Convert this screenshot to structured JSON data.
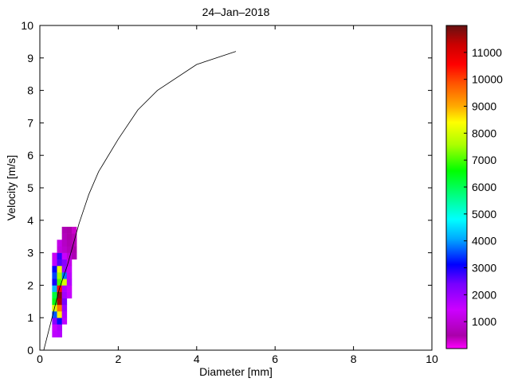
{
  "chart_data": {
    "type": "heatmap",
    "title": "24–Jan–2018",
    "xlabel": "Diameter [mm]",
    "ylabel": "Velocity [m/s]",
    "xlim": [
      0,
      10
    ],
    "ylim": [
      0,
      10
    ],
    "x_ticks": [
      "0",
      "2",
      "4",
      "6",
      "8",
      "10"
    ],
    "y_ticks": [
      "0",
      "1",
      "2",
      "3",
      "4",
      "5",
      "6",
      "7",
      "8",
      "9",
      "10"
    ],
    "grid": false,
    "colorbar": {
      "range": [
        0,
        12000
      ],
      "ticks": [
        "1000",
        "2000",
        "3000",
        "4000",
        "5000",
        "6000",
        "7000",
        "8000",
        "9000",
        "10000",
        "11000"
      ]
    },
    "cell_size": [
      0.125,
      0.2
    ],
    "cells": [
      {
        "d": 0.375,
        "v": 0.5,
        "count": 1600
      },
      {
        "d": 0.5,
        "v": 0.5,
        "count": 1700
      },
      {
        "d": 0.375,
        "v": 0.7,
        "count": 1500
      },
      {
        "d": 0.5,
        "v": 0.7,
        "count": 1800
      },
      {
        "d": 0.375,
        "v": 0.9,
        "count": 2200
      },
      {
        "d": 0.5,
        "v": 0.9,
        "count": 3200
      },
      {
        "d": 0.625,
        "v": 0.9,
        "count": 1600
      },
      {
        "d": 0.375,
        "v": 1.1,
        "count": 3600
      },
      {
        "d": 0.5,
        "v": 1.1,
        "count": 8500
      },
      {
        "d": 0.625,
        "v": 1.1,
        "count": 1800
      },
      {
        "d": 0.375,
        "v": 1.3,
        "count": 8000
      },
      {
        "d": 0.5,
        "v": 1.3,
        "count": 9500
      },
      {
        "d": 0.625,
        "v": 1.3,
        "count": 2000
      },
      {
        "d": 0.375,
        "v": 1.5,
        "count": 6500
      },
      {
        "d": 0.5,
        "v": 1.5,
        "count": 11500
      },
      {
        "d": 0.625,
        "v": 1.5,
        "count": 2400
      },
      {
        "d": 0.375,
        "v": 1.7,
        "count": 6200
      },
      {
        "d": 0.5,
        "v": 1.7,
        "count": 11800
      },
      {
        "d": 0.625,
        "v": 1.7,
        "count": 1900
      },
      {
        "d": 0.75,
        "v": 1.7,
        "count": 1500
      },
      {
        "d": 0.375,
        "v": 1.9,
        "count": 4200
      },
      {
        "d": 0.5,
        "v": 1.9,
        "count": 10500
      },
      {
        "d": 0.625,
        "v": 1.9,
        "count": 1800
      },
      {
        "d": 0.75,
        "v": 1.9,
        "count": 1400
      },
      {
        "d": 0.375,
        "v": 2.1,
        "count": 3000
      },
      {
        "d": 0.5,
        "v": 2.1,
        "count": 7000
      },
      {
        "d": 0.625,
        "v": 2.1,
        "count": 8000
      },
      {
        "d": 0.75,
        "v": 2.1,
        "count": 1700
      },
      {
        "d": 0.375,
        "v": 2.3,
        "count": 3500
      },
      {
        "d": 0.5,
        "v": 2.3,
        "count": 7500
      },
      {
        "d": 0.625,
        "v": 2.3,
        "count": 3800
      },
      {
        "d": 0.75,
        "v": 2.3,
        "count": 1600
      },
      {
        "d": 0.375,
        "v": 2.5,
        "count": 3100
      },
      {
        "d": 0.5,
        "v": 2.5,
        "count": 8200
      },
      {
        "d": 0.625,
        "v": 2.5,
        "count": 2000
      },
      {
        "d": 0.75,
        "v": 2.5,
        "count": 1500
      },
      {
        "d": 0.375,
        "v": 2.7,
        "count": 1600
      },
      {
        "d": 0.5,
        "v": 2.7,
        "count": 2600
      },
      {
        "d": 0.625,
        "v": 2.7,
        "count": 2200
      },
      {
        "d": 0.75,
        "v": 2.7,
        "count": 1200
      },
      {
        "d": 0.375,
        "v": 2.9,
        "count": 1300
      },
      {
        "d": 0.5,
        "v": 2.9,
        "count": 2800
      },
      {
        "d": 0.625,
        "v": 2.9,
        "count": 1500
      },
      {
        "d": 0.75,
        "v": 2.9,
        "count": 1000
      },
      {
        "d": 0.875,
        "v": 2.9,
        "count": 600
      },
      {
        "d": 0.5,
        "v": 3.1,
        "count": 1100
      },
      {
        "d": 0.625,
        "v": 3.1,
        "count": 900
      },
      {
        "d": 0.75,
        "v": 3.1,
        "count": 700
      },
      {
        "d": 0.875,
        "v": 3.1,
        "count": 500
      },
      {
        "d": 0.5,
        "v": 3.3,
        "count": 1200
      },
      {
        "d": 0.625,
        "v": 3.3,
        "count": 800
      },
      {
        "d": 0.75,
        "v": 3.3,
        "count": 600
      },
      {
        "d": 0.875,
        "v": 3.3,
        "count": 400
      },
      {
        "d": 0.625,
        "v": 3.5,
        "count": 700
      },
      {
        "d": 0.75,
        "v": 3.5,
        "count": 500
      },
      {
        "d": 0.875,
        "v": 3.5,
        "count": 400
      },
      {
        "d": 0.625,
        "v": 3.7,
        "count": 600
      },
      {
        "d": 0.75,
        "v": 3.7,
        "count": 500
      },
      {
        "d": 0.875,
        "v": 3.7,
        "count": 300
      }
    ],
    "fall_velocity_curve": {
      "x": [
        0.1,
        0.5,
        0.7,
        1.0,
        1.25,
        1.5,
        2.0,
        2.5,
        3.0,
        4.0,
        5.0
      ],
      "y": [
        0.0,
        1.9,
        2.6,
        3.9,
        4.8,
        5.5,
        6.5,
        7.4,
        8.0,
        8.8,
        9.2
      ]
    }
  }
}
